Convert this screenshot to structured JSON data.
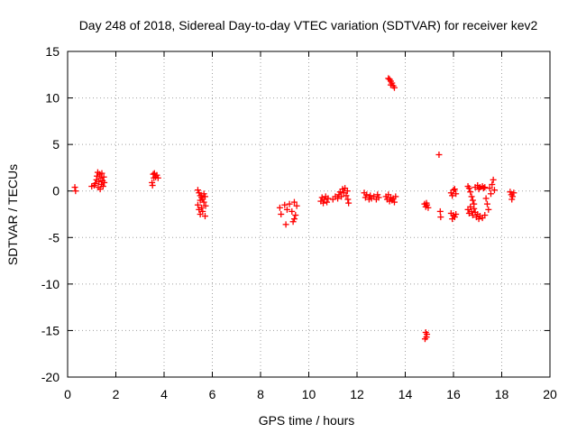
{
  "chart_data": {
    "type": "scatter",
    "title": "Day 248 of 2018, Sidereal Day-to-day VTEC variation (SDTVAR) for receiver kev2",
    "xlabel": "GPS time / hours",
    "ylabel": "SDTVAR / TECUs",
    "xlim": [
      0,
      20
    ],
    "ylim": [
      -20,
      15
    ],
    "x_ticks": [
      0,
      2,
      4,
      6,
      8,
      10,
      12,
      14,
      16,
      18,
      20
    ],
    "y_ticks": [
      -20,
      -15,
      -10,
      -5,
      0,
      5,
      10,
      15
    ],
    "x_tick_labels": [
      "0",
      "2",
      "4",
      "6",
      "8",
      "10",
      "12",
      "14",
      "16",
      "18",
      "20"
    ],
    "y_tick_labels": [
      "-20",
      "-15",
      "-10",
      "-5",
      "0",
      "5",
      "10",
      "15"
    ],
    "grid": true,
    "marker": "plus",
    "color": "#ff0000",
    "series": [
      {
        "name": "SDTVAR",
        "points": [
          [
            0.3,
            0.4
          ],
          [
            0.33,
            0.0
          ],
          [
            1.0,
            0.5
          ],
          [
            1.1,
            0.6
          ],
          [
            1.15,
            0.8
          ],
          [
            1.2,
            1.2
          ],
          [
            1.22,
            1.6
          ],
          [
            1.25,
            2.0
          ],
          [
            1.27,
            0.4
          ],
          [
            1.3,
            1.0
          ],
          [
            1.32,
            1.8
          ],
          [
            1.35,
            0.2
          ],
          [
            1.38,
            1.4
          ],
          [
            1.4,
            0.7
          ],
          [
            1.42,
            1.9
          ],
          [
            1.45,
            1.1
          ],
          [
            1.47,
            0.5
          ],
          [
            1.5,
            1.5
          ],
          [
            1.52,
            0.9
          ],
          [
            3.5,
            0.9
          ],
          [
            3.52,
            0.6
          ],
          [
            3.55,
            1.8
          ],
          [
            3.58,
            1.4
          ],
          [
            3.6,
            1.9
          ],
          [
            3.65,
            1.5
          ],
          [
            3.7,
            1.7
          ],
          [
            3.75,
            1.4
          ],
          [
            5.4,
            0.1
          ],
          [
            5.45,
            -0.2
          ],
          [
            5.5,
            -0.5
          ],
          [
            5.55,
            -0.7
          ],
          [
            5.6,
            -0.9
          ],
          [
            5.65,
            -0.3
          ],
          [
            5.7,
            -0.6
          ],
          [
            5.4,
            -1.5
          ],
          [
            5.45,
            -2.0
          ],
          [
            5.5,
            -2.5
          ],
          [
            5.55,
            -1.8
          ],
          [
            5.6,
            -2.2
          ],
          [
            5.65,
            -1.2
          ],
          [
            5.7,
            -2.7
          ],
          [
            5.72,
            -1.6
          ],
          [
            5.5,
            -1.0
          ],
          [
            8.8,
            -1.8
          ],
          [
            8.85,
            -2.5
          ],
          [
            9.0,
            -1.5
          ],
          [
            9.05,
            -3.6
          ],
          [
            9.1,
            -2.0
          ],
          [
            9.2,
            -1.4
          ],
          [
            9.3,
            -2.2
          ],
          [
            9.35,
            -3.3
          ],
          [
            9.4,
            -1.2
          ],
          [
            9.45,
            -2.6
          ],
          [
            9.5,
            -1.6
          ],
          [
            9.4,
            -3.0
          ],
          [
            10.5,
            -1.1
          ],
          [
            10.55,
            -0.7
          ],
          [
            10.6,
            -1.3
          ],
          [
            10.65,
            -0.9
          ],
          [
            10.7,
            -0.6
          ],
          [
            10.75,
            -1.2
          ],
          [
            10.8,
            -0.8
          ],
          [
            11.0,
            -0.9
          ],
          [
            11.1,
            -0.6
          ],
          [
            11.2,
            -0.8
          ],
          [
            11.25,
            -0.4
          ],
          [
            11.3,
            -0.1
          ],
          [
            11.35,
            -0.6
          ],
          [
            11.4,
            0.2
          ],
          [
            11.45,
            -0.2
          ],
          [
            11.5,
            0.3
          ],
          [
            11.55,
            -0.5
          ],
          [
            11.6,
            0.0
          ],
          [
            11.62,
            -0.9
          ],
          [
            11.65,
            -1.3
          ],
          [
            12.3,
            -0.2
          ],
          [
            12.35,
            -0.7
          ],
          [
            12.4,
            -0.4
          ],
          [
            12.5,
            -0.9
          ],
          [
            12.55,
            -0.5
          ],
          [
            12.6,
            -0.8
          ],
          [
            12.7,
            -0.6
          ],
          [
            12.8,
            -0.9
          ],
          [
            12.9,
            -0.7
          ],
          [
            12.85,
            -0.4
          ],
          [
            13.2,
            -0.6
          ],
          [
            13.25,
            -0.9
          ],
          [
            13.3,
            -0.4
          ],
          [
            13.35,
            -1.1
          ],
          [
            13.4,
            -0.7
          ],
          [
            13.45,
            -1.0
          ],
          [
            13.5,
            -0.8
          ],
          [
            13.55,
            -1.2
          ],
          [
            13.6,
            -0.6
          ],
          [
            13.3,
            12.1
          ],
          [
            13.35,
            12.0
          ],
          [
            13.4,
            11.8
          ],
          [
            13.45,
            11.6
          ],
          [
            13.5,
            11.3
          ],
          [
            13.55,
            11.1
          ],
          [
            13.4,
            11.4
          ],
          [
            14.8,
            -1.4
          ],
          [
            14.85,
            -1.7
          ],
          [
            14.9,
            -1.5
          ],
          [
            14.95,
            -1.8
          ],
          [
            14.88,
            -1.3
          ],
          [
            14.85,
            -15.2
          ],
          [
            14.88,
            -15.7
          ],
          [
            14.9,
            -15.4
          ],
          [
            14.82,
            -15.9
          ],
          [
            15.4,
            3.9
          ],
          [
            15.45,
            -2.2
          ],
          [
            15.47,
            -2.8
          ],
          [
            15.9,
            -0.2
          ],
          [
            15.95,
            -0.5
          ],
          [
            16.0,
            0.1
          ],
          [
            16.05,
            0.2
          ],
          [
            16.1,
            -0.3
          ],
          [
            15.9,
            -2.4
          ],
          [
            15.95,
            -3.0
          ],
          [
            16.0,
            -2.6
          ],
          [
            16.05,
            -2.8
          ],
          [
            16.1,
            -2.5
          ],
          [
            16.6,
            -2.0
          ],
          [
            16.65,
            -2.4
          ],
          [
            16.7,
            -1.7
          ],
          [
            16.75,
            -2.2
          ],
          [
            16.8,
            -2.6
          ],
          [
            16.85,
            -1.9
          ],
          [
            16.9,
            -2.3
          ],
          [
            16.95,
            -2.8
          ],
          [
            17.0,
            -2.5
          ],
          [
            17.05,
            -3.0
          ],
          [
            17.1,
            -2.7
          ],
          [
            17.2,
            -2.9
          ],
          [
            17.3,
            -2.6
          ],
          [
            16.6,
            0.5
          ],
          [
            16.65,
            0.3
          ],
          [
            16.7,
            -0.1
          ],
          [
            16.75,
            -0.6
          ],
          [
            16.8,
            -1.0
          ],
          [
            16.85,
            -1.4
          ],
          [
            16.9,
            0.4
          ],
          [
            17.0,
            0.6
          ],
          [
            17.05,
            0.2
          ],
          [
            17.1,
            0.4
          ],
          [
            17.2,
            0.5
          ],
          [
            17.25,
            0.3
          ],
          [
            17.3,
            0.4
          ],
          [
            17.35,
            -0.8
          ],
          [
            17.4,
            -1.4
          ],
          [
            17.45,
            -2.0
          ],
          [
            17.5,
            0.3
          ],
          [
            17.55,
            -0.3
          ],
          [
            17.6,
            0.7
          ],
          [
            17.65,
            1.2
          ],
          [
            17.7,
            0.1
          ],
          [
            18.35,
            -0.1
          ],
          [
            18.4,
            -0.4
          ],
          [
            18.45,
            -0.6
          ],
          [
            18.5,
            -0.2
          ],
          [
            18.42,
            -0.9
          ]
        ]
      }
    ]
  }
}
